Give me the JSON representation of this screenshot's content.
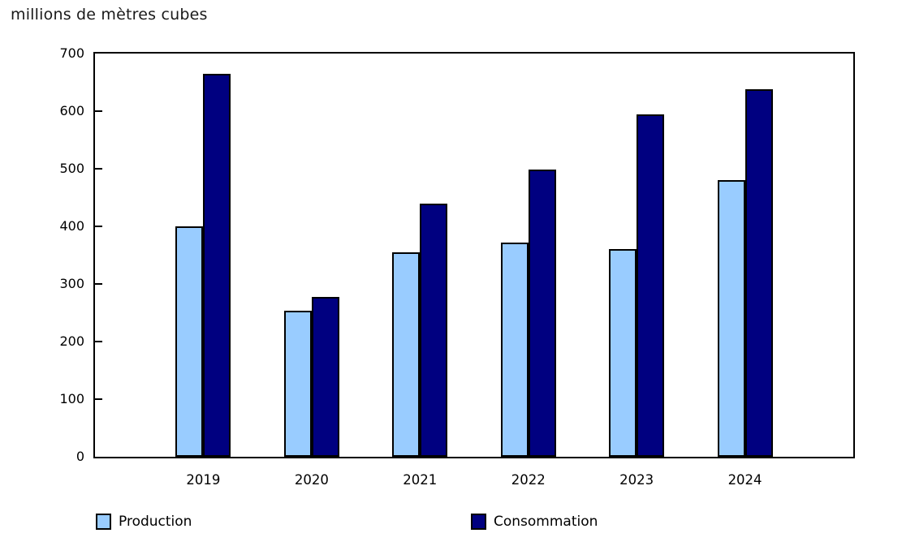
{
  "chart_data": {
    "type": "bar",
    "title": "millions de mètres cubes",
    "categories": [
      "2019",
      "2020",
      "2021",
      "2022",
      "2023",
      "2024"
    ],
    "series": [
      {
        "name": "Production",
        "color": "#99CCFF",
        "values": [
          400,
          253,
          355,
          372,
          360,
          480
        ]
      },
      {
        "name": "Consommation",
        "color": "#000080",
        "values": [
          665,
          278,
          440,
          498,
          594,
          638
        ]
      }
    ],
    "xlabel": "",
    "ylabel": "millions de mètres cubes",
    "ylim": [
      0,
      700
    ],
    "y_ticks": [
      0,
      100,
      200,
      300,
      400,
      500,
      600,
      700
    ],
    "grid": false,
    "legend_position": "bottom",
    "axis_color": "#000000",
    "background_color": "#ffffff"
  }
}
